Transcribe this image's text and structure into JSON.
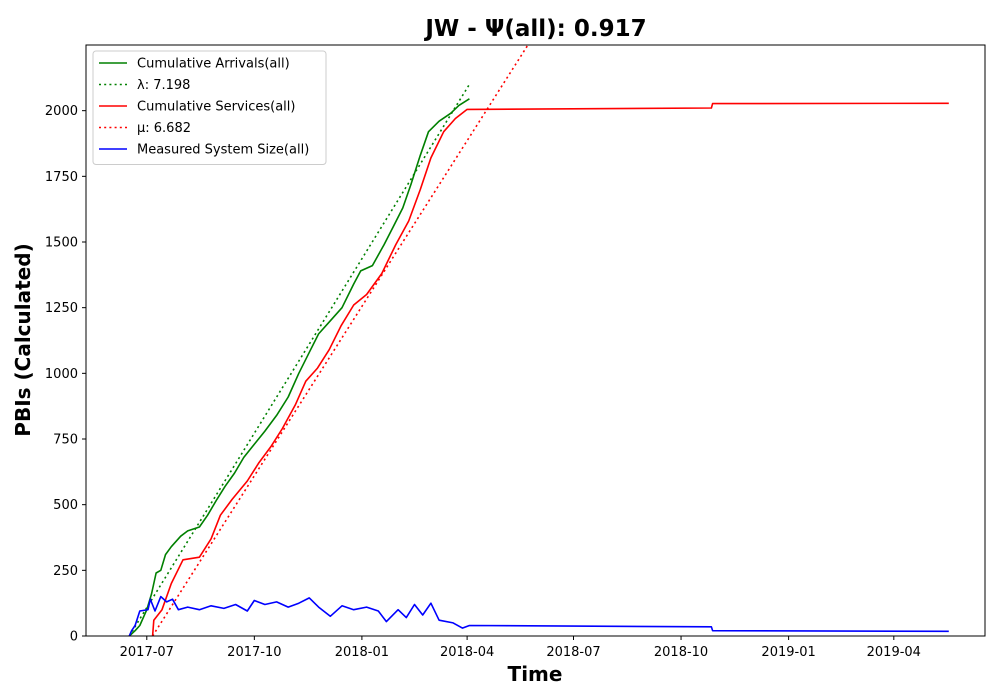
{
  "chart_data": {
    "type": "line",
    "title": "JW -  Ψ(all): 0.917",
    "xlabel": "Time",
    "ylabel": "PBIs (Calculated)",
    "ylim": [
      0,
      2250
    ],
    "xlim": [
      "2017-05-10",
      "2019-06-18"
    ],
    "x_ticks": [
      "2017-07-01",
      "2017-10-01",
      "2018-01-01",
      "2018-04-01",
      "2018-07-01",
      "2018-10-01",
      "2019-01-01",
      "2019-04-01"
    ],
    "x_tick_labels": [
      "2017-07",
      "2017-10",
      "2018-01",
      "2018-04",
      "2018-07",
      "2018-10",
      "2019-01",
      "2019-04"
    ],
    "y_ticks": [
      0,
      250,
      500,
      750,
      1000,
      1250,
      1500,
      1750,
      2000
    ],
    "y_tick_labels": [
      "0",
      "250",
      "500",
      "750",
      "1000",
      "1250",
      "1500",
      "1750",
      "2000"
    ],
    "grid": false,
    "legend_position": "upper-left",
    "series": [
      {
        "name": "Cumulative Arrivals(all)",
        "color": "#008000",
        "style": "solid",
        "points": [
          [
            "2017-06-16",
            0
          ],
          [
            "2017-06-21",
            20
          ],
          [
            "2017-06-25",
            40
          ],
          [
            "2017-07-01",
            100
          ],
          [
            "2017-07-05",
            160
          ],
          [
            "2017-07-09",
            240
          ],
          [
            "2017-07-13",
            250
          ],
          [
            "2017-07-17",
            310
          ],
          [
            "2017-07-22",
            340
          ],
          [
            "2017-07-30",
            380
          ],
          [
            "2017-08-05",
            400
          ],
          [
            "2017-08-15",
            415
          ],
          [
            "2017-08-22",
            460
          ],
          [
            "2017-08-30",
            520
          ],
          [
            "2017-09-06",
            570
          ],
          [
            "2017-09-14",
            620
          ],
          [
            "2017-09-22",
            680
          ],
          [
            "2017-10-01",
            730
          ],
          [
            "2017-10-10",
            780
          ],
          [
            "2017-10-20",
            840
          ],
          [
            "2017-10-30",
            910
          ],
          [
            "2017-11-08",
            1000
          ],
          [
            "2017-11-17",
            1080
          ],
          [
            "2017-11-25",
            1150
          ],
          [
            "2017-12-05",
            1200
          ],
          [
            "2017-12-15",
            1250
          ],
          [
            "2017-12-25",
            1340
          ],
          [
            "2017-12-31",
            1390
          ],
          [
            "2018-01-10",
            1410
          ],
          [
            "2018-01-20",
            1490
          ],
          [
            "2018-01-28",
            1560
          ],
          [
            "2018-02-05",
            1630
          ],
          [
            "2018-02-12",
            1720
          ],
          [
            "2018-02-20",
            1830
          ],
          [
            "2018-02-27",
            1920
          ],
          [
            "2018-03-08",
            1960
          ],
          [
            "2018-03-18",
            1990
          ],
          [
            "2018-03-25",
            2020
          ],
          [
            "2018-04-03",
            2045
          ]
        ]
      },
      {
        "name": "λ: 7.198",
        "color": "#008000",
        "style": "dotted",
        "points": [
          [
            "2017-06-16",
            0
          ],
          [
            "2018-04-03",
            2100
          ]
        ]
      },
      {
        "name": "Cumulative Services(all)",
        "color": "#ff0000",
        "style": "solid",
        "points": [
          [
            "2017-07-06",
            0
          ],
          [
            "2017-07-07",
            60
          ],
          [
            "2017-07-14",
            100
          ],
          [
            "2017-07-22",
            200
          ],
          [
            "2017-08-01",
            290
          ],
          [
            "2017-08-15",
            300
          ],
          [
            "2017-08-25",
            370
          ],
          [
            "2017-09-02",
            460
          ],
          [
            "2017-09-12",
            520
          ],
          [
            "2017-09-25",
            590
          ],
          [
            "2017-10-05",
            660
          ],
          [
            "2017-10-15",
            720
          ],
          [
            "2017-10-25",
            790
          ],
          [
            "2017-11-05",
            880
          ],
          [
            "2017-11-14",
            970
          ],
          [
            "2017-11-24",
            1020
          ],
          [
            "2017-12-04",
            1090
          ],
          [
            "2017-12-14",
            1180
          ],
          [
            "2017-12-25",
            1260
          ],
          [
            "2018-01-05",
            1300
          ],
          [
            "2018-01-18",
            1380
          ],
          [
            "2018-01-30",
            1490
          ],
          [
            "2018-02-10",
            1580
          ],
          [
            "2018-02-20",
            1700
          ],
          [
            "2018-03-01",
            1820
          ],
          [
            "2018-03-12",
            1920
          ],
          [
            "2018-03-22",
            1970
          ],
          [
            "2018-04-01",
            2005
          ],
          [
            "2018-10-27",
            2010
          ],
          [
            "2018-10-28",
            2027
          ],
          [
            "2019-05-18",
            2028
          ]
        ]
      },
      {
        "name": "μ: 6.682",
        "color": "#ff0000",
        "style": "dotted",
        "points": [
          [
            "2017-07-06",
            0
          ],
          [
            "2018-05-23",
            2250
          ]
        ]
      },
      {
        "name": "Measured System Size(all)",
        "color": "#0000ff",
        "style": "solid",
        "points": [
          [
            "2017-06-16",
            0
          ],
          [
            "2017-06-18",
            20
          ],
          [
            "2017-06-21",
            40
          ],
          [
            "2017-06-25",
            95
          ],
          [
            "2017-07-02",
            100
          ],
          [
            "2017-07-04",
            140
          ],
          [
            "2017-07-08",
            95
          ],
          [
            "2017-07-13",
            150
          ],
          [
            "2017-07-18",
            130
          ],
          [
            "2017-07-23",
            140
          ],
          [
            "2017-07-28",
            100
          ],
          [
            "2017-08-05",
            110
          ],
          [
            "2017-08-15",
            100
          ],
          [
            "2017-08-25",
            115
          ],
          [
            "2017-09-05",
            105
          ],
          [
            "2017-09-15",
            120
          ],
          [
            "2017-09-25",
            95
          ],
          [
            "2017-10-01",
            135
          ],
          [
            "2017-10-10",
            120
          ],
          [
            "2017-10-20",
            130
          ],
          [
            "2017-10-30",
            110
          ],
          [
            "2017-11-08",
            125
          ],
          [
            "2017-11-17",
            145
          ],
          [
            "2017-11-25",
            110
          ],
          [
            "2017-12-05",
            75
          ],
          [
            "2017-12-15",
            115
          ],
          [
            "2017-12-25",
            100
          ],
          [
            "2018-01-05",
            110
          ],
          [
            "2018-01-15",
            95
          ],
          [
            "2018-01-22",
            55
          ],
          [
            "2018-02-01",
            100
          ],
          [
            "2018-02-08",
            70
          ],
          [
            "2018-02-15",
            120
          ],
          [
            "2018-02-22",
            80
          ],
          [
            "2018-03-01",
            125
          ],
          [
            "2018-03-08",
            60
          ],
          [
            "2018-03-20",
            50
          ],
          [
            "2018-03-28",
            30
          ],
          [
            "2018-04-03",
            40
          ],
          [
            "2018-10-27",
            35
          ],
          [
            "2018-10-28",
            20
          ],
          [
            "2019-05-18",
            18
          ]
        ]
      }
    ]
  }
}
